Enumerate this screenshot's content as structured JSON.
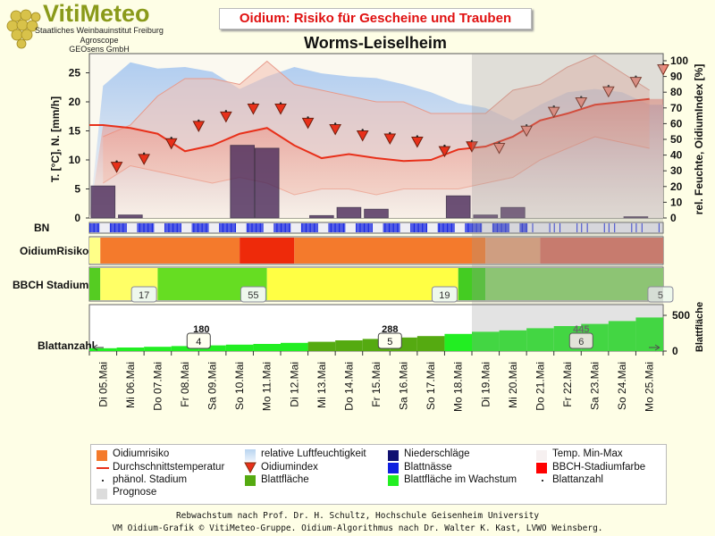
{
  "header": {
    "logo_title": "VitiMeteo",
    "logo_lines": [
      "Staatliches Weinbauinstitut Freiburg",
      "Agroscope",
      "GEOsens GmbH"
    ],
    "chart_title": "Oidium: Risiko für Gescheine und Trauben",
    "station": "Worms-Leiselheim"
  },
  "chart_data": {
    "type": "line",
    "categories": [
      "Di 05.Mai",
      "Mi 06.Mai",
      "Do 07.Mai",
      "Fr 08.Mai",
      "Sa 09.Mai",
      "So 10.Mai",
      "Mo 11.Mai",
      "Di 12.Mai",
      "Mi 13.Mai",
      "Do 14.Mai",
      "Fr 15.Mai",
      "Sa 16.Mai",
      "So 17.Mai",
      "Mo 18.Mai",
      "Di 19.Mai",
      "Mi 20.Mai",
      "Do 21.Mai",
      "Fr 22.Mai",
      "Sa 23.Mai",
      "So 24.Mai",
      "Mo 25.Mai"
    ],
    "ylabel_left": "T. [°C], N. [mm/h]",
    "ylabel_right": "rel. Feuchte, OidiumIndex [%]",
    "ylim_left": [
      0,
      28
    ],
    "ylim_right": [
      0,
      100
    ],
    "yticks_left": [
      0,
      5,
      10,
      15,
      20,
      25
    ],
    "yticks_right": [
      0,
      10,
      20,
      30,
      40,
      50,
      60,
      70,
      80,
      90,
      100
    ],
    "forecast_start_index": 14,
    "humidity": [
      84,
      99,
      95,
      96,
      93,
      82,
      90,
      96,
      92,
      90,
      89,
      85,
      80,
      73,
      70,
      62,
      72,
      80,
      82,
      80,
      72
    ],
    "temp_max": [
      14,
      16,
      21,
      24,
      24,
      23,
      27,
      23,
      22,
      21,
      20,
      20,
      18,
      18,
      18,
      22,
      23,
      26,
      28,
      25,
      22
    ],
    "temp_min": [
      6,
      9,
      8,
      7,
      6,
      7,
      6,
      4,
      5,
      5,
      4,
      5,
      5,
      5,
      6,
      7,
      10,
      12,
      14,
      13,
      12
    ],
    "temp_mean": [
      16,
      15.5,
      14.5,
      11.5,
      12.5,
      14.5,
      15.5,
      12.5,
      10.3,
      11,
      10.3,
      9.8,
      10,
      11.8,
      12.3,
      14,
      16.8,
      18,
      19.5,
      20,
      20.5
    ],
    "precip": [
      5.5,
      0.5,
      0,
      0,
      0,
      0,
      0,
      12.5,
      12.0,
      0,
      0.4,
      1.8,
      1.5,
      0,
      3.8,
      0.5,
      1.8,
      0,
      0,
      0,
      0.2
    ],
    "precip_x": [
      0.5,
      1.5,
      2.5,
      3.5,
      4.5,
      5.5,
      6.5,
      5.6,
      6.5,
      7.5,
      8.5,
      9.5,
      10.5,
      11.5,
      13.5,
      14.5,
      15.5,
      16.5,
      17.5,
      18.5,
      20
    ],
    "oidium_index": [
      32,
      37,
      47,
      58,
      64,
      69,
      69,
      60,
      56,
      52,
      50,
      48,
      42,
      45,
      44,
      55,
      67,
      73,
      80,
      86,
      94
    ],
    "oidium_index_x": [
      0,
      1,
      2,
      3,
      4,
      5,
      6,
      7,
      8,
      9,
      10,
      11,
      12,
      13,
      14,
      15,
      16,
      17,
      18,
      19,
      20
    ],
    "rows": {
      "bn_label": "BN",
      "risk_label": "OidiumRisiko",
      "bbch_label": "BBCH Stadium",
      "leaf_label": "Blattanzahl",
      "leaf_axis_label": "Blattfläche"
    },
    "risk_segments": [
      {
        "from": 0,
        "to": 0.4,
        "level": "low"
      },
      {
        "from": 0.4,
        "to": 5.5,
        "level": "high"
      },
      {
        "from": 5.5,
        "to": 7.5,
        "level": "very-high"
      },
      {
        "from": 7.5,
        "to": 14.5,
        "level": "high"
      },
      {
        "from": 14.5,
        "to": 16.5,
        "level": "forecast-high"
      },
      {
        "from": 16.5,
        "to": 21,
        "level": "forecast-very-high"
      }
    ],
    "bbch_segments": [
      {
        "from": 0,
        "to": 0.4,
        "color": "#55cc22"
      },
      {
        "from": 0.4,
        "to": 2.5,
        "color": "#ffff66"
      },
      {
        "from": 2.5,
        "to": 6.5,
        "color": "#66dd22"
      },
      {
        "from": 6.5,
        "to": 13.5,
        "color": "#ffff44"
      },
      {
        "from": 13.5,
        "to": 14.5,
        "color": "#44cc22"
      },
      {
        "from": 14.5,
        "to": 21,
        "color": "#88d466"
      }
    ],
    "bbch_stages": [
      {
        "x": 2.0,
        "label": "17"
      },
      {
        "x": 6.0,
        "label": "55"
      },
      {
        "x": 13.0,
        "label": "19"
      },
      {
        "x": 20.9,
        "label": "5"
      }
    ],
    "leaf_area": [
      40,
      50,
      60,
      70,
      80,
      90,
      100,
      115,
      130,
      150,
      170,
      190,
      210,
      240,
      270,
      290,
      320,
      350,
      380,
      420,
      470
    ],
    "leaf_area_ylim": [
      0,
      650
    ],
    "leaf_area_ticks": [
      0,
      500
    ],
    "leaf_area_labels": [
      {
        "x": 4.1,
        "text": "180"
      },
      {
        "x": 11.0,
        "text": "288"
      },
      {
        "x": 18.0,
        "text": "445"
      }
    ],
    "leaf_count_badges": [
      {
        "x": 4.0,
        "text": "4"
      },
      {
        "x": 11.0,
        "text": "5"
      },
      {
        "x": 18.0,
        "text": "6"
      }
    ]
  },
  "legend": {
    "items": [
      {
        "label": "Oidiumrisiko"
      },
      {
        "label": "relative Luftfeuchtigkeit"
      },
      {
        "label": "Niederschläge"
      },
      {
        "label": "Temp. Min-Max"
      },
      {
        "label": "Durchschnittstemperatur"
      },
      {
        "label": "Oidiumindex"
      },
      {
        "label": "Blattnässe"
      },
      {
        "label": "BBCH-Stadiumfarbe"
      },
      {
        "label": "phänol. Stadium"
      },
      {
        "label": "Blattfläche"
      },
      {
        "label": "Blattfläche im Wachstum"
      },
      {
        "label": "Blattanzahl"
      },
      {
        "label": "Prognose"
      }
    ]
  },
  "footer": {
    "line1": "Rebwachstum nach Prof. Dr. H. Schultz, Hochschule Geisenheim University",
    "line2": "VM Oidium-Grafik © VitiMeteo-Gruppe. Oidium-Algorithmus nach Dr. Walter K. Kast, LVWO Weinsberg."
  },
  "colors": {
    "oidium_risk": "#f47a2c",
    "oidium_very_high": "#ee2a0a",
    "humidity": "#b8d4f0",
    "precip": "#4a2a5a",
    "temp_range": "#f4b4a4",
    "mean_temp": "#e8301a",
    "oidium_index": "#e8301a",
    "leaf_wetness": "#1020e0",
    "bbch": "#ff0000",
    "leaf_area": "#55aa11",
    "leaf_growth": "#22ee22",
    "forecast": "#cccccc"
  }
}
